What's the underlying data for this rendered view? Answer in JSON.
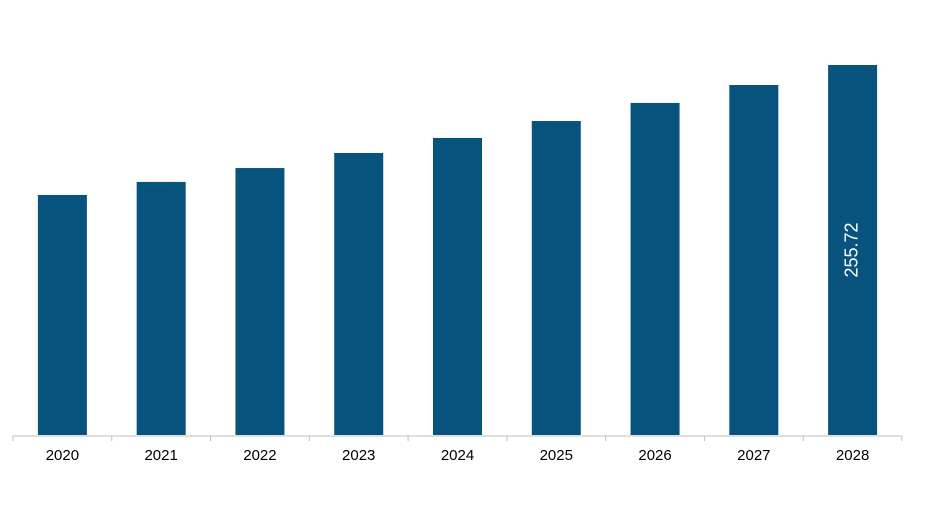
{
  "chart_data": {
    "type": "bar",
    "categories": [
      "2020",
      "2021",
      "2022",
      "2023",
      "2024",
      "2025",
      "2026",
      "2027",
      "2028"
    ],
    "values": [
      165.9,
      174.9,
      184.5,
      194.9,
      205.3,
      217.0,
      229.5,
      241.9,
      255.72
    ],
    "value_labels": [
      null,
      null,
      null,
      null,
      null,
      null,
      null,
      null,
      "255.72"
    ],
    "color": "#08527e"
  }
}
